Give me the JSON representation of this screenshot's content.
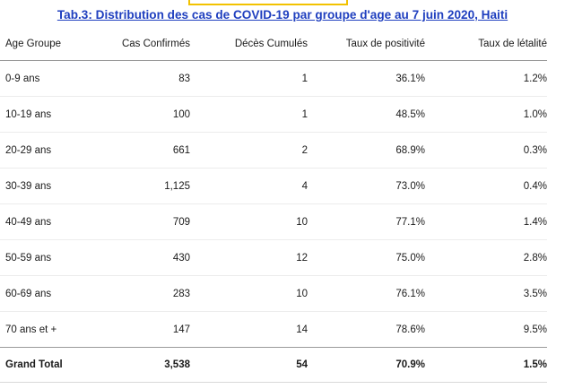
{
  "title": "Tab.3: Distribution des cas de COVID-19 par groupe d'age  au 7 juin 2020, Haiti",
  "colors": {
    "title": "#1f3fbf",
    "top_box_border": "#f2c200"
  },
  "table": {
    "headers": [
      "Age Groupe",
      "Cas Confirmés",
      "Décès Cumulés",
      "Taux de positivité",
      "Taux de létalité"
    ],
    "rows": [
      [
        "0-9 ans",
        "83",
        "1",
        "36.1%",
        "1.2%"
      ],
      [
        "10-19 ans",
        "100",
        "1",
        "48.5%",
        "1.0%"
      ],
      [
        "20-29 ans",
        "661",
        "2",
        "68.9%",
        "0.3%"
      ],
      [
        "30-39 ans",
        "1,125",
        "4",
        "73.0%",
        "0.4%"
      ],
      [
        "40-49 ans",
        "709",
        "10",
        "77.1%",
        "1.4%"
      ],
      [
        "50-59 ans",
        "430",
        "12",
        "75.0%",
        "2.8%"
      ],
      [
        "60-69 ans",
        "283",
        "10",
        "76.1%",
        "3.5%"
      ],
      [
        "70 ans et +",
        "147",
        "14",
        "78.6%",
        "9.5%"
      ]
    ],
    "total": [
      "Grand Total",
      "3,538",
      "54",
      "70.9%",
      "1.5%"
    ]
  }
}
